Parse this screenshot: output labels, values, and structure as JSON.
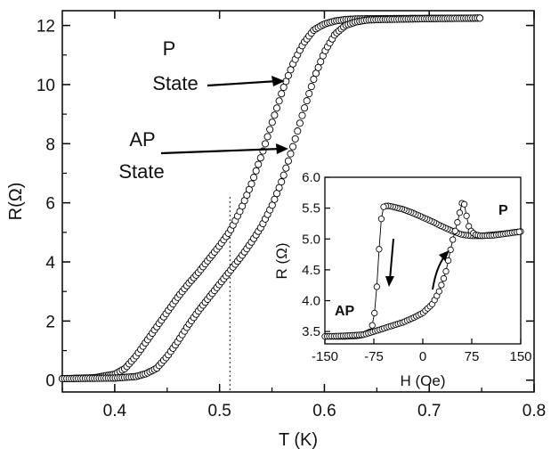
{
  "chart_data": [
    {
      "type": "scatter",
      "title": "",
      "xlabel": "T (K)",
      "ylabel": "R(Ω)",
      "xlim": [
        0.35,
        0.8
      ],
      "ylim": [
        -0.4,
        12.5
      ],
      "xticks": [
        "0.4",
        "0.5",
        "0.6",
        "0.7",
        "0.8"
      ],
      "yticks": [
        "0",
        "2",
        "4",
        "6",
        "8",
        "10",
        "12"
      ],
      "grid": false,
      "reference_line_x": 0.51,
      "series": [
        {
          "x": [
            0.35,
            0.38,
            0.4,
            0.41,
            0.42,
            0.43,
            0.44,
            0.45,
            0.46,
            0.47,
            0.48,
            0.49,
            0.5,
            0.51,
            0.52,
            0.53,
            0.54,
            0.55,
            0.56,
            0.57,
            0.58,
            0.59,
            0.6,
            0.61,
            0.62,
            0.63,
            0.65,
            0.7,
            0.75
          ],
          "y": [
            0.05,
            0.08,
            0.2,
            0.4,
            0.8,
            1.3,
            1.8,
            2.3,
            2.8,
            3.25,
            3.65,
            4.1,
            4.55,
            5.05,
            5.75,
            6.6,
            7.6,
            8.7,
            9.8,
            10.7,
            11.4,
            11.85,
            12.05,
            12.15,
            12.2,
            12.22,
            12.23,
            12.24,
            12.25
          ]
        },
        {
          "x": [
            0.35,
            0.4,
            0.42,
            0.43,
            0.44,
            0.45,
            0.46,
            0.47,
            0.48,
            0.49,
            0.5,
            0.51,
            0.52,
            0.53,
            0.54,
            0.55,
            0.56,
            0.57,
            0.58,
            0.59,
            0.6,
            0.61,
            0.62,
            0.63,
            0.64,
            0.65,
            0.7,
            0.75
          ],
          "y": [
            0.05,
            0.07,
            0.12,
            0.22,
            0.4,
            0.8,
            1.3,
            1.85,
            2.35,
            2.8,
            3.25,
            3.7,
            4.15,
            4.65,
            5.2,
            5.9,
            6.8,
            7.9,
            9.1,
            10.2,
            11.1,
            11.7,
            12.0,
            12.12,
            12.18,
            12.2,
            12.23,
            12.25
          ]
        }
      ],
      "annotations": [
        {
          "lines": [
            "P",
            "State"
          ]
        },
        {
          "lines": [
            "AP",
            "State"
          ]
        }
      ]
    },
    {
      "type": "line",
      "title": "",
      "xlabel": "H (Oe)",
      "ylabel": "R (Ω)",
      "xlim": [
        -150,
        150
      ],
      "ylim": [
        3.3,
        6.0
      ],
      "xticks": [
        "-150",
        "-75",
        "0",
        "75",
        "150"
      ],
      "yticks": [
        "3.5",
        "4.0",
        "4.5",
        "5.0",
        "5.5",
        "6.0"
      ],
      "grid": false,
      "series": [
        {
          "x": [
            150,
            120,
            90,
            75,
            60,
            45,
            30,
            15,
            0,
            -15,
            -30,
            -45,
            -55,
            -60,
            -63,
            -65,
            -68,
            -70,
            -72,
            -75,
            -80,
            -90,
            -100,
            -120,
            -150
          ],
          "y": [
            5.12,
            5.08,
            5.05,
            5.05,
            5.07,
            5.13,
            5.2,
            5.28,
            5.35,
            5.42,
            5.48,
            5.52,
            5.54,
            5.52,
            5.4,
            5.1,
            4.7,
            4.3,
            4.0,
            3.7,
            3.5,
            3.45,
            3.43,
            3.42,
            3.42
          ]
        },
        {
          "x": [
            -150,
            -120,
            -90,
            -75,
            -60,
            -45,
            -30,
            -15,
            0,
            15,
            25,
            35,
            40,
            45,
            50,
            55,
            58,
            60,
            62,
            64,
            66,
            68,
            72,
            80,
            90,
            110,
            150
          ],
          "y": [
            3.42,
            3.43,
            3.45,
            3.5,
            3.55,
            3.6,
            3.65,
            3.72,
            3.8,
            3.95,
            4.15,
            4.45,
            4.7,
            4.95,
            5.15,
            5.35,
            5.5,
            5.58,
            5.6,
            5.55,
            5.45,
            5.3,
            5.15,
            5.07,
            5.05,
            5.06,
            5.12
          ]
        }
      ],
      "labels": [
        "AP",
        "P"
      ]
    }
  ]
}
